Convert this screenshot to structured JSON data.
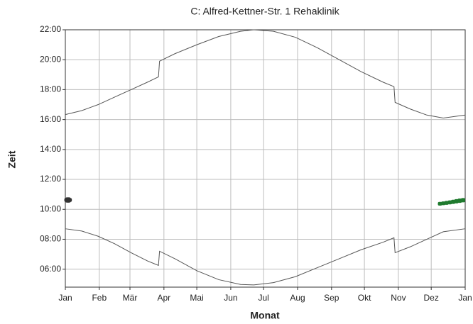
{
  "chart_data": {
    "type": "line",
    "title": "C: Alfred-Kettner-Str. 1 Rehaklinik",
    "xlabel": "Monat",
    "ylabel": "Zeit",
    "xlim": [
      0,
      365
    ],
    "ylim": [
      4.8,
      22
    ],
    "grid": true,
    "xticks": [
      {
        "value": 0,
        "label": "Jan"
      },
      {
        "value": 31,
        "label": "Feb"
      },
      {
        "value": 59,
        "label": "Mär"
      },
      {
        "value": 90,
        "label": "Apr"
      },
      {
        "value": 120,
        "label": "Mai"
      },
      {
        "value": 151,
        "label": "Jun"
      },
      {
        "value": 181,
        "label": "Jul"
      },
      {
        "value": 212,
        "label": "Aug"
      },
      {
        "value": 243,
        "label": "Sep"
      },
      {
        "value": 273,
        "label": "Okt"
      },
      {
        "value": 304,
        "label": "Nov"
      },
      {
        "value": 334,
        "label": "Dez"
      },
      {
        "value": 365,
        "label": "Jan"
      }
    ],
    "yticks": [
      {
        "value": 6,
        "label": "06:00"
      },
      {
        "value": 8,
        "label": "08:00"
      },
      {
        "value": 10,
        "label": "10:00"
      },
      {
        "value": 12,
        "label": "12:00"
      },
      {
        "value": 14,
        "label": "14:00"
      },
      {
        "value": 16,
        "label": "16:00"
      },
      {
        "value": 18,
        "label": "18:00"
      },
      {
        "value": 20,
        "label": "20:00"
      },
      {
        "value": 22,
        "label": "22:00"
      }
    ],
    "series": [
      {
        "color": "#555555",
        "x": [
          0,
          15,
          30,
          45,
          60,
          75,
          85,
          86,
          100,
          120,
          140,
          160,
          172,
          190,
          210,
          230,
          250,
          270,
          290,
          300,
          301,
          315,
          330,
          345,
          365
        ],
        "values": [
          16.33,
          16.6,
          17.0,
          17.5,
          18.0,
          18.5,
          18.85,
          19.9,
          20.4,
          21.0,
          21.55,
          21.9,
          22.0,
          21.9,
          21.5,
          20.8,
          20.0,
          19.2,
          18.5,
          18.2,
          17.15,
          16.7,
          16.3,
          16.1,
          16.3
        ]
      },
      {
        "color": "#555555",
        "x": [
          0,
          15,
          30,
          45,
          60,
          75,
          85,
          86,
          100,
          120,
          140,
          160,
          172,
          190,
          210,
          230,
          250,
          270,
          290,
          300,
          301,
          315,
          330,
          345,
          365
        ],
        "values": [
          8.7,
          8.55,
          8.2,
          7.7,
          7.1,
          6.55,
          6.25,
          7.2,
          6.7,
          5.9,
          5.3,
          4.98,
          4.95,
          5.1,
          5.5,
          6.1,
          6.7,
          7.3,
          7.8,
          8.1,
          7.1,
          7.5,
          8.0,
          8.5,
          8.7
        ]
      }
    ],
    "shadow": [
      {
        "color": "#333333",
        "x": [
          1,
          2,
          3,
          4
        ],
        "low": [
          10.5,
          10.45,
          10.45,
          10.5
        ],
        "high": [
          10.75,
          10.8,
          10.8,
          10.75
        ]
      },
      {
        "color": "#1f7a2e",
        "x": [
          342,
          345,
          348,
          351,
          354,
          357,
          360,
          363
        ],
        "low": [
          10.25,
          10.28,
          10.3,
          10.33,
          10.36,
          10.4,
          10.43,
          10.47
        ],
        "high": [
          10.5,
          10.53,
          10.56,
          10.6,
          10.64,
          10.68,
          10.72,
          10.75
        ]
      }
    ]
  }
}
